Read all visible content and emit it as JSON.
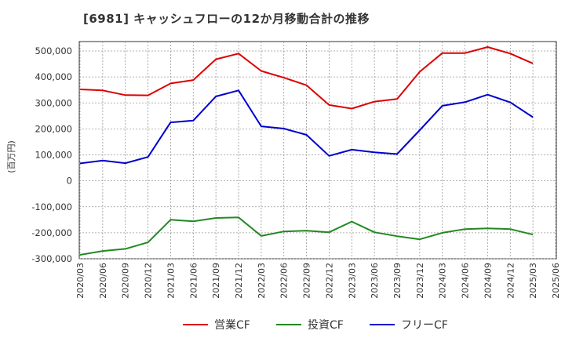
{
  "chart_data": {
    "type": "line",
    "title": "[6981]  キャッシュフローの12か月移動合計の推移",
    "ylabel": "(百万円)",
    "xlabel": "",
    "ylim": [
      -300000,
      520000
    ],
    "yticks": [
      -300000,
      -200000,
      -100000,
      0,
      100000,
      200000,
      300000,
      400000,
      500000
    ],
    "ytick_labels": [
      "-300,000",
      "-200,000",
      "-100,000",
      "0",
      "100,000",
      "200,000",
      "300,000",
      "400,000",
      "500,000"
    ],
    "x_ticks": [
      "2020/03",
      "2020/06",
      "2020/09",
      "2020/12",
      "2021/03",
      "2021/06",
      "2021/09",
      "2021/12",
      "2022/03",
      "2022/06",
      "2022/09",
      "2022/12",
      "2023/03",
      "2023/06",
      "2023/09",
      "2023/12",
      "2024/03",
      "2024/06",
      "2024/09",
      "2024/12",
      "2025/03",
      "2025/06"
    ],
    "grid": true,
    "legend_position": "bottom",
    "series": [
      {
        "name": "営業CF",
        "color": "#dd0000",
        "values": [
          352000,
          348000,
          330000,
          329000,
          375000,
          388000,
          468000,
          490000,
          423000,
          397000,
          368000,
          292000,
          278000,
          305000,
          315000,
          420000,
          492000,
          492000,
          515000,
          490000,
          452000
        ]
      },
      {
        "name": "投資CF",
        "color": "#228822",
        "values": [
          -285000,
          -270000,
          -262000,
          -237000,
          -150000,
          -156000,
          -143000,
          -141000,
          -212000,
          -195000,
          -192000,
          -198000,
          -157000,
          -198000,
          -213000,
          -225000,
          -200000,
          -186000,
          -183000,
          -186000,
          -207000
        ]
      },
      {
        "name": "フリーCF",
        "color": "#0000cc",
        "values": [
          67000,
          78000,
          68000,
          92000,
          225000,
          232000,
          325000,
          348000,
          210000,
          201000,
          177000,
          96000,
          120000,
          110000,
          103000,
          195000,
          289000,
          303000,
          332000,
          302000,
          245000
        ]
      }
    ]
  }
}
